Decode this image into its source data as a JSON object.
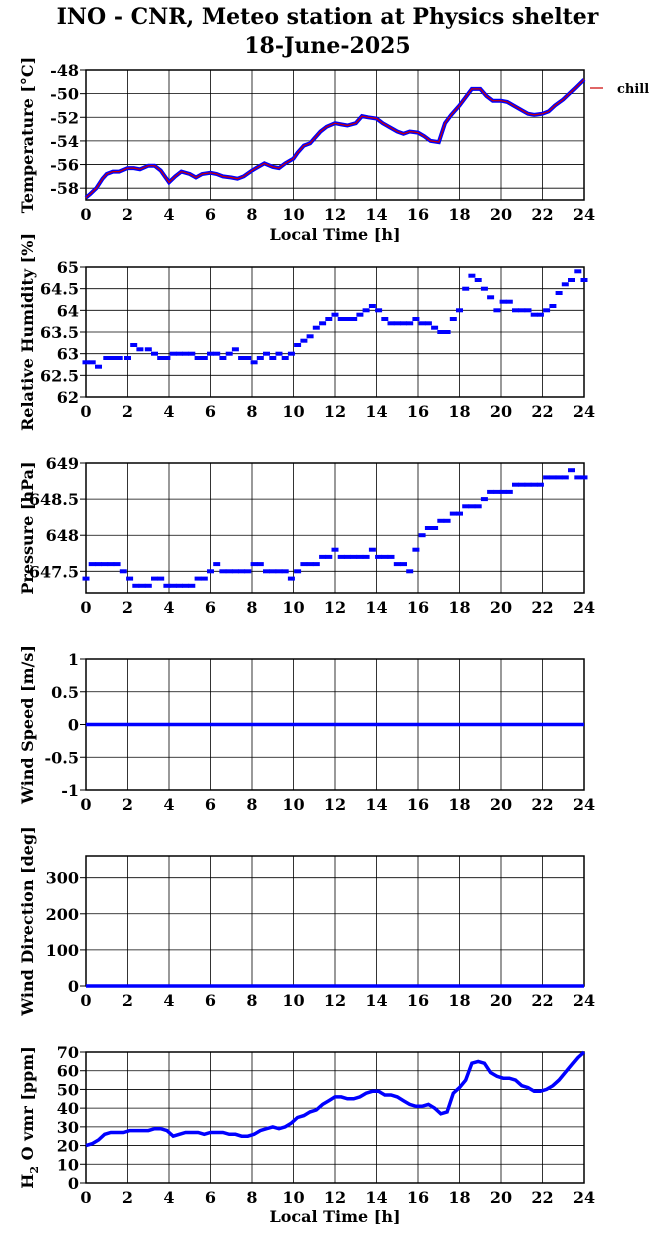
{
  "title_line1": "INO - CNR, Meteo station at Physics shelter",
  "title_line2": "18-June-2025",
  "colors": {
    "series": "#0000ff",
    "temp_line": "#cc0000",
    "temp_points": "#0000ff",
    "grid": "#000000"
  },
  "chart_data": [
    {
      "type": "line",
      "ylabel": "Temperature [°C]",
      "xlabel": "Local Time [h]",
      "legend": "chill",
      "legend_position": "right",
      "grid": true,
      "xlim": [
        0,
        24
      ],
      "ylim": [
        -59,
        -48
      ],
      "x_ticks": [
        0,
        2,
        4,
        6,
        8,
        10,
        12,
        14,
        16,
        18,
        20,
        22,
        24
      ],
      "y_ticks": [
        -58,
        -56,
        -54,
        -52,
        -50,
        -48
      ],
      "series": [
        {
          "x": [
            0.0,
            0.2,
            0.5,
            0.8,
            1.0,
            1.3,
            1.6,
            2.0,
            2.3,
            2.6,
            3.0,
            3.3,
            3.6,
            3.8,
            4.0,
            4.3,
            4.6,
            5.0,
            5.3,
            5.6,
            6.0,
            6.3,
            6.6,
            7.0,
            7.3,
            7.6,
            8.0,
            8.3,
            8.6,
            9.0,
            9.3,
            9.6,
            10.0,
            10.2,
            10.5,
            10.8,
            11.0,
            11.3,
            11.6,
            12.0,
            12.3,
            12.6,
            13.0,
            13.3,
            13.6,
            14.0,
            14.3,
            14.6,
            15.0,
            15.3,
            15.6,
            16.0,
            16.3,
            16.6,
            17.0,
            17.3,
            17.6,
            18.0,
            18.3,
            18.6,
            19.0,
            19.3,
            19.6,
            20.0,
            20.3,
            20.6,
            21.0,
            21.3,
            21.6,
            22.0,
            22.3,
            22.6,
            23.0,
            23.3,
            23.6,
            24.0
          ],
          "y": [
            -58.8,
            -58.5,
            -58.0,
            -57.2,
            -56.8,
            -56.6,
            -56.6,
            -56.3,
            -56.3,
            -56.4,
            -56.1,
            -56.1,
            -56.5,
            -57.0,
            -57.5,
            -57.0,
            -56.6,
            -56.8,
            -57.1,
            -56.8,
            -56.7,
            -56.8,
            -57.0,
            -57.1,
            -57.2,
            -57.0,
            -56.5,
            -56.2,
            -55.9,
            -56.2,
            -56.3,
            -55.9,
            -55.5,
            -55.0,
            -54.4,
            -54.2,
            -53.8,
            -53.2,
            -52.8,
            -52.5,
            -52.6,
            -52.7,
            -52.5,
            -51.9,
            -52.0,
            -52.1,
            -52.5,
            -52.8,
            -53.2,
            -53.4,
            -53.2,
            -53.3,
            -53.6,
            -54.0,
            -54.1,
            -52.5,
            -51.8,
            -51.0,
            -50.3,
            -49.6,
            -49.6,
            -50.2,
            -50.6,
            -50.6,
            -50.7,
            -51.0,
            -51.4,
            -51.7,
            -51.8,
            -51.7,
            -51.5,
            -51.0,
            -50.5,
            -50.0,
            -49.5,
            -48.8
          ]
        }
      ]
    },
    {
      "type": "scatter",
      "ylabel": "Relative Humidity [%]",
      "grid": true,
      "xlim": [
        0,
        24
      ],
      "ylim": [
        62,
        65
      ],
      "x_ticks": [
        0,
        2,
        4,
        6,
        8,
        10,
        12,
        14,
        16,
        18,
        20,
        22,
        24
      ],
      "y_ticks": [
        62,
        62.5,
        63,
        63.5,
        64,
        64.5,
        65
      ],
      "series": [
        {
          "x": [
            0.0,
            0.3,
            0.6,
            1.0,
            1.3,
            1.6,
            2.0,
            2.3,
            2.6,
            3.0,
            3.3,
            3.6,
            3.9,
            4.2,
            4.5,
            4.8,
            5.1,
            5.4,
            5.7,
            6.0,
            6.3,
            6.6,
            6.9,
            7.2,
            7.5,
            7.8,
            8.1,
            8.4,
            8.7,
            9.0,
            9.3,
            9.6,
            9.9,
            10.2,
            10.5,
            10.8,
            11.1,
            11.4,
            11.7,
            12.0,
            12.3,
            12.6,
            12.9,
            13.2,
            13.5,
            13.8,
            14.1,
            14.4,
            14.7,
            15.0,
            15.3,
            15.6,
            15.9,
            16.2,
            16.5,
            16.8,
            17.1,
            17.4,
            17.7,
            18.0,
            18.3,
            18.6,
            18.9,
            19.2,
            19.5,
            19.8,
            20.1,
            20.4,
            20.7,
            21.0,
            21.3,
            21.6,
            21.9,
            22.2,
            22.5,
            22.8,
            23.1,
            23.4,
            23.7,
            24.0
          ],
          "y": [
            62.8,
            62.8,
            62.7,
            62.9,
            62.9,
            62.9,
            62.9,
            63.2,
            63.1,
            63.1,
            63.0,
            62.9,
            62.9,
            63.0,
            63.0,
            63.0,
            63.0,
            62.9,
            62.9,
            63.0,
            63.0,
            62.9,
            63.0,
            63.1,
            62.9,
            62.9,
            62.8,
            62.9,
            63.0,
            62.9,
            63.0,
            62.9,
            63.0,
            63.2,
            63.3,
            63.4,
            63.6,
            63.7,
            63.8,
            63.9,
            63.8,
            63.8,
            63.8,
            63.9,
            64.0,
            64.1,
            64.0,
            63.8,
            63.7,
            63.7,
            63.7,
            63.7,
            63.8,
            63.7,
            63.7,
            63.6,
            63.5,
            63.5,
            63.8,
            64.0,
            64.5,
            64.8,
            64.7,
            64.5,
            64.3,
            64.0,
            64.2,
            64.2,
            64.0,
            64.0,
            64.0,
            63.9,
            63.9,
            64.0,
            64.1,
            64.4,
            64.6,
            64.7,
            64.9,
            64.7
          ]
        }
      ]
    },
    {
      "type": "scatter",
      "ylabel": "Pressure [hPa]",
      "grid": true,
      "xlim": [
        0,
        24
      ],
      "ylim": [
        647.2,
        649
      ],
      "x_ticks": [
        0,
        2,
        4,
        6,
        8,
        10,
        12,
        14,
        16,
        18,
        20,
        22,
        24
      ],
      "y_ticks": [
        647.5,
        648,
        648.5,
        649
      ],
      "series": [
        {
          "x": [
            0.0,
            0.3,
            0.6,
            0.9,
            1.2,
            1.5,
            1.8,
            2.1,
            2.4,
            2.7,
            3.0,
            3.3,
            3.6,
            3.9,
            4.2,
            4.5,
            4.8,
            5.1,
            5.4,
            5.7,
            6.0,
            6.3,
            6.6,
            6.9,
            7.2,
            7.5,
            7.8,
            8.1,
            8.4,
            8.7,
            9.0,
            9.3,
            9.6,
            9.9,
            10.2,
            10.5,
            10.8,
            11.1,
            11.4,
            11.7,
            12.0,
            12.3,
            12.6,
            12.9,
            13.2,
            13.5,
            13.8,
            14.1,
            14.4,
            14.7,
            15.0,
            15.3,
            15.6,
            15.9,
            16.2,
            16.5,
            16.8,
            17.1,
            17.4,
            17.7,
            18.0,
            18.3,
            18.6,
            18.9,
            19.2,
            19.5,
            19.8,
            20.1,
            20.4,
            20.7,
            21.0,
            21.3,
            21.6,
            21.9,
            22.2,
            22.5,
            22.8,
            23.1,
            23.4,
            23.7,
            24.0
          ],
          "y": [
            647.4,
            647.6,
            647.6,
            647.6,
            647.6,
            647.6,
            647.5,
            647.4,
            647.3,
            647.3,
            647.3,
            647.4,
            647.4,
            647.3,
            647.3,
            647.3,
            647.3,
            647.3,
            647.4,
            647.4,
            647.5,
            647.6,
            647.5,
            647.5,
            647.5,
            647.5,
            647.5,
            647.6,
            647.6,
            647.5,
            647.5,
            647.5,
            647.5,
            647.4,
            647.5,
            647.6,
            647.6,
            647.6,
            647.7,
            647.7,
            647.8,
            647.7,
            647.7,
            647.7,
            647.7,
            647.7,
            647.8,
            647.7,
            647.7,
            647.7,
            647.6,
            647.6,
            647.5,
            647.8,
            648.0,
            648.1,
            648.1,
            648.2,
            648.2,
            648.3,
            648.3,
            648.4,
            648.4,
            648.4,
            648.5,
            648.6,
            648.6,
            648.6,
            648.6,
            648.7,
            648.7,
            648.7,
            648.7,
            648.7,
            648.8,
            648.8,
            648.8,
            648.8,
            648.9,
            648.8,
            648.8
          ]
        }
      ]
    },
    {
      "type": "line",
      "ylabel": "Wind Speed [m/s]",
      "grid": true,
      "xlim": [
        0,
        24
      ],
      "ylim": [
        -1,
        1
      ],
      "x_ticks": [
        0,
        2,
        4,
        6,
        8,
        10,
        12,
        14,
        16,
        18,
        20,
        22,
        24
      ],
      "y_ticks": [
        -1,
        -0.5,
        0,
        0.5,
        1
      ],
      "series": [
        {
          "x": [
            0,
            24
          ],
          "y": [
            0,
            0
          ]
        }
      ]
    },
    {
      "type": "line",
      "ylabel": "Wind Direction [deg]",
      "grid": true,
      "xlim": [
        0,
        24
      ],
      "ylim": [
        0,
        360
      ],
      "x_ticks": [
        0,
        2,
        4,
        6,
        8,
        10,
        12,
        14,
        16,
        18,
        20,
        22,
        24
      ],
      "y_ticks": [
        0,
        100,
        200,
        300
      ],
      "series": [
        {
          "x": [
            0,
            24
          ],
          "y": [
            0,
            0
          ]
        }
      ]
    },
    {
      "type": "line",
      "ylabel": "H2O vmr [ppm]",
      "xlabel": "Local Time [h]",
      "grid": true,
      "xlim": [
        0,
        24
      ],
      "ylim": [
        0,
        70
      ],
      "x_ticks": [
        0,
        2,
        4,
        6,
        8,
        10,
        12,
        14,
        16,
        18,
        20,
        22,
        24
      ],
      "y_ticks": [
        0,
        10,
        20,
        30,
        40,
        50,
        60,
        70
      ],
      "series": [
        {
          "x": [
            0.0,
            0.3,
            0.6,
            0.9,
            1.2,
            1.5,
            1.8,
            2.1,
            2.4,
            2.7,
            3.0,
            3.3,
            3.6,
            3.9,
            4.2,
            4.5,
            4.8,
            5.1,
            5.4,
            5.7,
            6.0,
            6.3,
            6.6,
            6.9,
            7.2,
            7.5,
            7.8,
            8.1,
            8.4,
            8.7,
            9.0,
            9.3,
            9.6,
            9.9,
            10.2,
            10.5,
            10.8,
            11.1,
            11.4,
            11.7,
            12.0,
            12.3,
            12.6,
            12.9,
            13.2,
            13.5,
            13.8,
            14.1,
            14.4,
            14.7,
            15.0,
            15.3,
            15.6,
            15.9,
            16.2,
            16.5,
            16.8,
            17.1,
            17.4,
            17.7,
            18.0,
            18.3,
            18.6,
            18.9,
            19.2,
            19.5,
            19.8,
            20.1,
            20.4,
            20.7,
            21.0,
            21.3,
            21.6,
            21.9,
            22.2,
            22.5,
            22.8,
            23.1,
            23.4,
            23.7,
            24.0
          ],
          "y": [
            20,
            21,
            23,
            26,
            27,
            27,
            27,
            28,
            28,
            28,
            28,
            29,
            29,
            28,
            25,
            26,
            27,
            27,
            27,
            26,
            27,
            27,
            27,
            26,
            26,
            25,
            25,
            26,
            28,
            29,
            30,
            29,
            30,
            32,
            35,
            36,
            38,
            39,
            42,
            44,
            46,
            46,
            45,
            45,
            46,
            48,
            49,
            49,
            47,
            47,
            46,
            44,
            42,
            41,
            41,
            42,
            40,
            37,
            38,
            48,
            51,
            55,
            64,
            65,
            64,
            59,
            57,
            56,
            56,
            55,
            52,
            51,
            49,
            49,
            50,
            52,
            55,
            59,
            63,
            67,
            70
          ]
        }
      ]
    }
  ]
}
